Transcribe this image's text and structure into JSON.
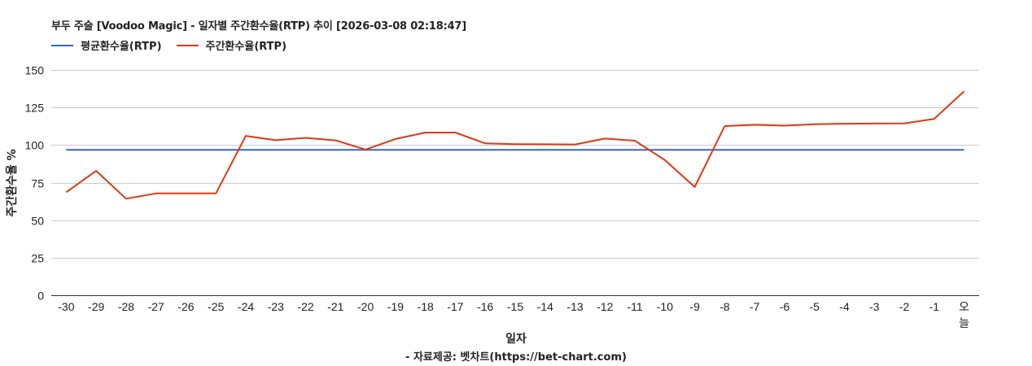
{
  "chart_data": {
    "type": "line",
    "title": "부두 주술 [Voodoo Magic] - 일자별 주간환수율(RTP) 추이 [2026-03-08 02:18:47]",
    "xlabel": "일자",
    "ylabel": "주간환수율 %",
    "source": "- 자료제공: 벳차트(https://bet-chart.com)",
    "ylim": [
      0,
      150
    ],
    "yticks": [
      0,
      25,
      50,
      75,
      100,
      125,
      150
    ],
    "grid": true,
    "legend_position": "top-left",
    "categories": [
      "-30",
      "-29",
      "-28",
      "-27",
      "-26",
      "-25",
      "-24",
      "-23",
      "-22",
      "-21",
      "-20",
      "-19",
      "-18",
      "-17",
      "-16",
      "-15",
      "-14",
      "-13",
      "-12",
      "-11",
      "-10",
      "-9",
      "-8",
      "-7",
      "-6",
      "-5",
      "-4",
      "-3",
      "-2",
      "-1",
      "오늘"
    ],
    "series": [
      {
        "name": "평균환수율(RTP)",
        "color": "#3366cc",
        "values": [
          96.8,
          96.8,
          96.8,
          96.8,
          96.8,
          96.8,
          96.8,
          96.8,
          96.8,
          96.8,
          96.8,
          96.8,
          96.8,
          96.8,
          96.8,
          96.8,
          96.8,
          96.8,
          96.8,
          96.8,
          96.8,
          96.8,
          96.8,
          96.8,
          96.8,
          96.8,
          96.8,
          96.8,
          96.8,
          96.8,
          96.8
        ]
      },
      {
        "name": "주간환수율(RTP)",
        "color": "#dc3912",
        "values": [
          68.6,
          82.8,
          64.3,
          67.8,
          67.8,
          67.8,
          106.1,
          103.2,
          104.8,
          103.1,
          97.0,
          104.0,
          108.3,
          108.3,
          101.1,
          100.6,
          100.5,
          100.4,
          104.3,
          102.9,
          90.0,
          72.1,
          112.6,
          113.5,
          112.9,
          113.8,
          114.2,
          114.3,
          114.4,
          117.4,
          135.8
        ]
      }
    ]
  }
}
